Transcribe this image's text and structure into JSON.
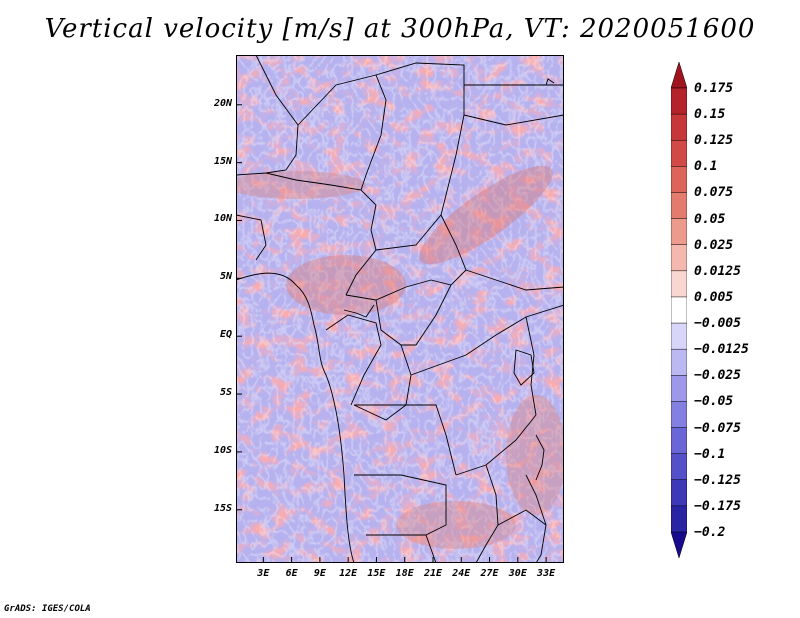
{
  "title": "Vertical velocity [m/s] at 300hPa, VT: 2020051600",
  "credit": "GrADS: IGES/COLA",
  "map": {
    "variable": "Vertical velocity",
    "units": "m/s",
    "level": "300hPa",
    "valid_time": "2020051600",
    "lat_ticks": [
      {
        "label": "20N",
        "lat": 20
      },
      {
        "label": "15N",
        "lat": 15
      },
      {
        "label": "10N",
        "lat": 10
      },
      {
        "label": "5N",
        "lat": 5
      },
      {
        "label": "EQ",
        "lat": 0
      },
      {
        "label": "5S",
        "lat": -5
      },
      {
        "label": "10S",
        "lat": -10
      },
      {
        "label": "15S",
        "lat": -15
      }
    ],
    "lon_ticks": [
      {
        "label": "3E",
        "lon": 3
      },
      {
        "label": "6E",
        "lon": 6
      },
      {
        "label": "9E",
        "lon": 9
      },
      {
        "label": "12E",
        "lon": 12
      },
      {
        "label": "15E",
        "lon": 15
      },
      {
        "label": "18E",
        "lon": 18
      },
      {
        "label": "21E",
        "lon": 21
      },
      {
        "label": "24E",
        "lon": 24
      },
      {
        "label": "27E",
        "lon": 27
      },
      {
        "label": "30E",
        "lon": 30
      },
      {
        "label": "33E",
        "lon": 33
      }
    ]
  },
  "colorbar": {
    "labels": [
      "0.175",
      "0.15",
      "0.125",
      "0.1",
      "0.075",
      "0.05",
      "0.025",
      "0.0125",
      "0.005",
      "-0.005",
      "-0.0125",
      "-0.025",
      "-0.05",
      "-0.075",
      "-0.1",
      "-0.125",
      "-0.175",
      "-0.2"
    ],
    "colors": [
      "#a0141e",
      "#b4232a",
      "#c83737",
      "#d24a46",
      "#dc6458",
      "#e47c6e",
      "#ec9a8c",
      "#f4b8ae",
      "#f9d6d0",
      "#ffffff",
      "#d8d6f8",
      "#bcb8f2",
      "#9e98ea",
      "#8480e2",
      "#6a66d8",
      "#5450ca",
      "#3c38b8",
      "#2824a4",
      "#180a8c"
    ]
  }
}
